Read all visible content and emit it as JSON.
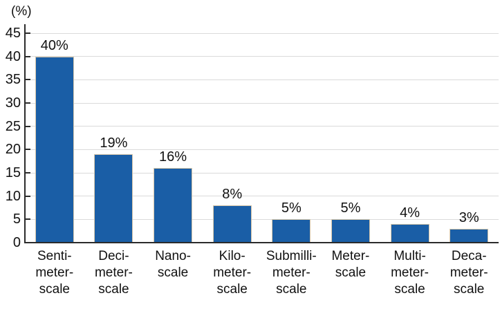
{
  "chart_data": {
    "type": "bar",
    "title": "",
    "ylabel": "(%)",
    "xlabel": "",
    "categories": [
      "Senti-\nmeter-\nscale",
      "Deci-\nmeter-\nscale",
      "Nano-\nscale",
      "Kilo-\nmeter-\nscale",
      "Submilli-\nmeter-\nscale",
      "Meter-\nscale",
      "Multi-\nmeter-\nscale",
      "Deca-\nmeter-\nscale"
    ],
    "values": [
      40,
      19,
      16,
      8,
      5,
      5,
      4,
      3
    ],
    "value_labels": [
      "40%",
      "19%",
      "16%",
      "8%",
      "5%",
      "5%",
      "4%",
      "3%"
    ],
    "yticks": [
      0,
      5,
      10,
      15,
      20,
      25,
      30,
      35,
      40,
      45
    ],
    "ylim": [
      0,
      45
    ],
    "grid": "horizontal",
    "legend": "none",
    "colors": {
      "bar_fill": "#1a5ea6",
      "bar_edge": "#d8c7aa",
      "gridline": "#dadada",
      "axis": "#2b2b2b",
      "text": "#111111",
      "background": "#ffffff"
    }
  }
}
